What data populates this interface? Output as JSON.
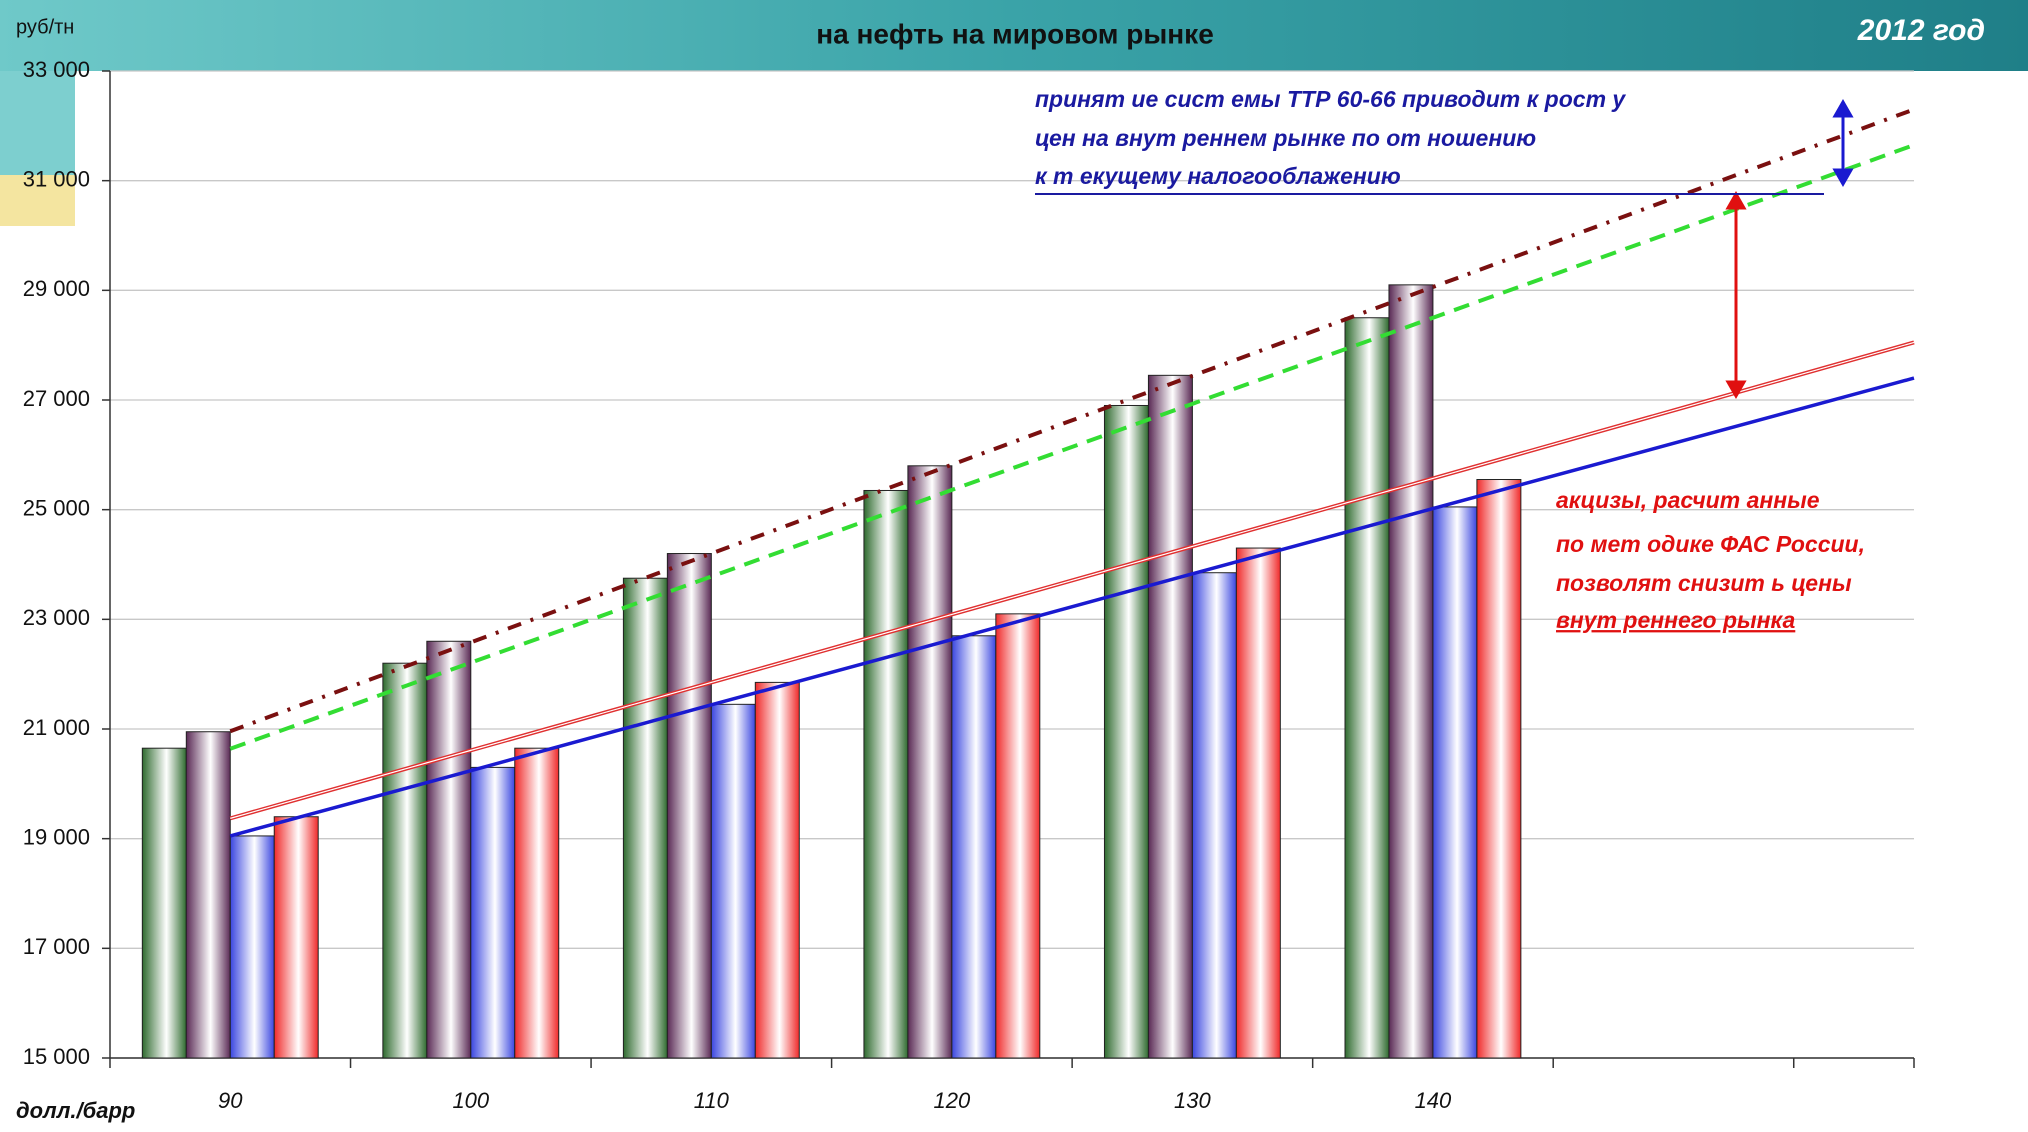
{
  "chart_data": {
    "type": "bar",
    "title": "на нефть на мировом рынке",
    "subtitle": "2012 год",
    "y_label": "руб/тн",
    "x_label": "долл./барр",
    "categories": [
      "90",
      "100",
      "110",
      "120",
      "130",
      "140",
      null,
      null
    ],
    "ylim": [
      15000,
      33000
    ],
    "yticks": [
      {
        "value": 15000,
        "label": "15 000"
      },
      {
        "value": 17000,
        "label": "17 000"
      },
      {
        "value": 19000,
        "label": "19 000"
      },
      {
        "value": 21000,
        "label": "21 000"
      },
      {
        "value": 23000,
        "label": "23 000"
      },
      {
        "value": 25000,
        "label": "25 000"
      },
      {
        "value": 27000,
        "label": "27 000"
      },
      {
        "value": 29000,
        "label": "29 000"
      },
      {
        "value": 31000,
        "label": "31 000"
      },
      {
        "value": 33000,
        "label": "33 000"
      }
    ],
    "grid": true,
    "series": [
      {
        "color": "#2f6b2f",
        "values": [
          20650,
          22200,
          23750,
          25350,
          26900,
          28500,
          null,
          null
        ]
      },
      {
        "color": "#5a2a55",
        "values": [
          20950,
          22600,
          24200,
          25800,
          27450,
          29100,
          null,
          null
        ]
      },
      {
        "color": "#3a46e0",
        "values": [
          19050,
          20300,
          21450,
          22700,
          23850,
          25050,
          null,
          null
        ]
      },
      {
        "color": "#f02a2a",
        "values": [
          19400,
          20650,
          21850,
          23100,
          24300,
          25550,
          null,
          null
        ]
      },
      {
        "type": "line",
        "style": "dashdot",
        "color": "#7a1010",
        "values": [
          20960,
          22580,
          24200,
          25820,
          27440,
          29060,
          30680,
          32300
        ]
      },
      {
        "type": "line",
        "style": "dashed",
        "color": "#33dd33",
        "values": [
          20640,
          22210,
          23780,
          25360,
          26930,
          28500,
          30070,
          31650
        ]
      },
      {
        "type": "line",
        "style": "double",
        "color": "#e03030",
        "values": [
          19370,
          20610,
          21850,
          23090,
          24330,
          25570,
          26810,
          28050
        ]
      },
      {
        "type": "line",
        "style": "solid",
        "color": "#1a1ad0",
        "values": [
          19050,
          20240,
          21440,
          22630,
          23830,
          25020,
          26210,
          27400
        ]
      }
    ],
    "annotations": [
      {
        "lines": [
          "принят ие сист емы ТТР 60-66 приводит  к рост у",
          "цен на внут реннем рынке по от ношению",
          "к т екущему налогооблажению"
        ],
        "color": "#1a1aa0"
      },
      {
        "lines": [
          "акцизы, расчит анные",
          "по мет одике ФАС России,",
          "позволят  снизит ь цены",
          "внут реннего рынка"
        ],
        "color": "#e01010"
      }
    ]
  }
}
